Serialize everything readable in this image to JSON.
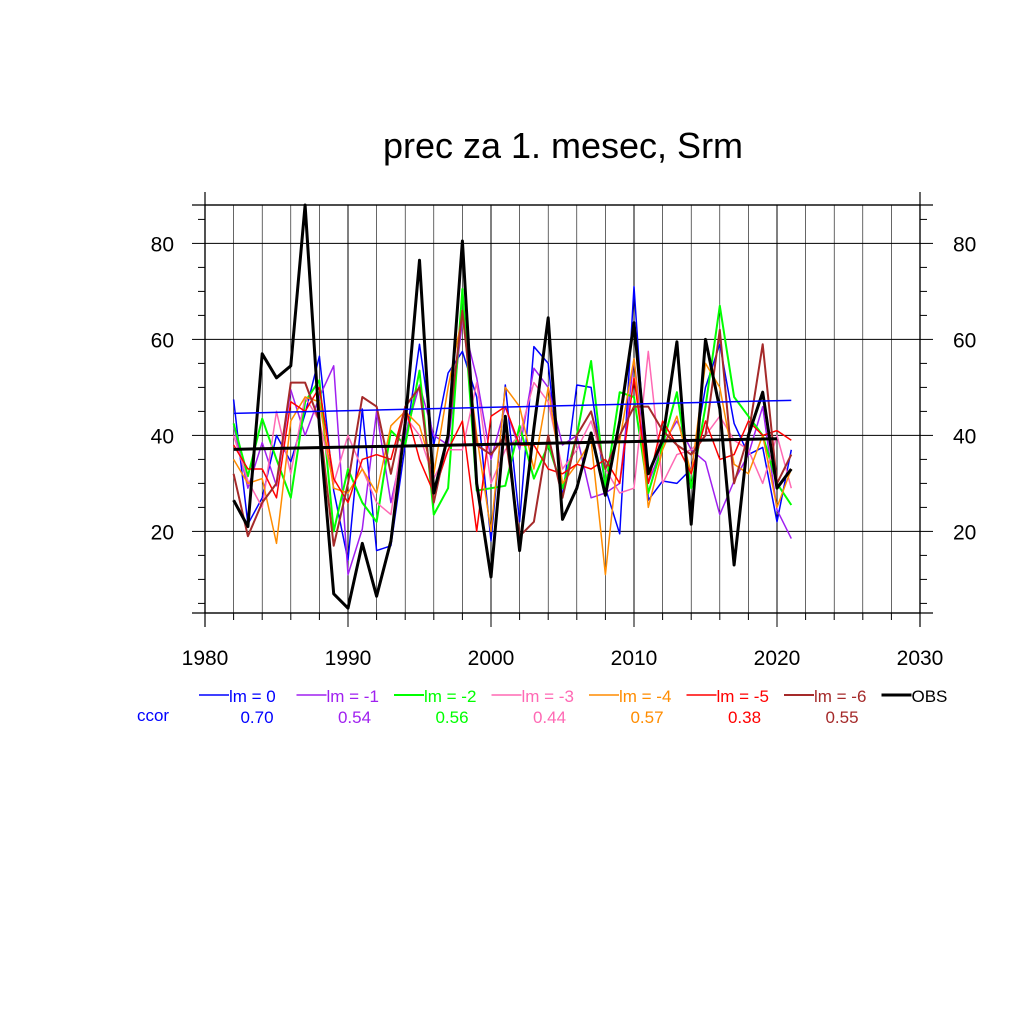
{
  "chart_data": {
    "type": "line",
    "title": "prec za 1. mesec, Srm",
    "xlabel": "",
    "ylabel": "",
    "xlim": [
      1980,
      2030
    ],
    "ylim": [
      3,
      88
    ],
    "x_ticks": [
      1980,
      1990,
      2000,
      2010,
      2020,
      2030
    ],
    "y_ticks": [
      20,
      40,
      60,
      80
    ],
    "grid": true,
    "legend_position": "bottom",
    "ccor_label": "ccor",
    "x": [
      1982,
      1983,
      1984,
      1985,
      1986,
      1987,
      1988,
      1989,
      1990,
      1991,
      1992,
      1993,
      1994,
      1995,
      1996,
      1997,
      1998,
      1999,
      2000,
      2001,
      2002,
      2003,
      2004,
      2005,
      2006,
      2007,
      2008,
      2009,
      2010,
      2011,
      2012,
      2013,
      2014,
      2015,
      2016,
      2017,
      2018,
      2019,
      2020,
      2021
    ],
    "series": [
      {
        "name": "lm = 0",
        "ccor": "0.70",
        "color": "#0000ff",
        "width": 1.5,
        "values": [
          47.5,
          21.5,
          27.0,
          40.0,
          34.5,
          44.5,
          56.5,
          28.5,
          14.0,
          45.5,
          16.0,
          17.0,
          38.0,
          59.0,
          38.0,
          53.0,
          57.5,
          48.0,
          18.0,
          50.5,
          22.0,
          58.5,
          55.0,
          27.0,
          50.5,
          50.0,
          29.0,
          19.5,
          71.0,
          26.5,
          30.5,
          30.0,
          33.0,
          50.0,
          59.0,
          42.5,
          36.0,
          37.5,
          22.0,
          37.0
        ]
      },
      {
        "name": "lm = -1",
        "ccor": "0.54",
        "color": "#a020f0",
        "width": 1.5,
        "values": [
          42.0,
          29.0,
          38.5,
          29.5,
          49.5,
          40.0,
          48.0,
          54.5,
          11.0,
          20.5,
          45.0,
          26.0,
          40.0,
          50.5,
          40.0,
          38.0,
          64.0,
          52.0,
          35.0,
          46.0,
          37.0,
          54.0,
          50.0,
          38.0,
          40.0,
          27.0,
          28.0,
          30.0,
          56.0,
          30.0,
          38.0,
          43.0,
          37.0,
          34.5,
          23.5,
          30.5,
          36.0,
          46.0,
          24.5,
          18.5
        ]
      },
      {
        "name": "lm = -2",
        "ccor": "0.56",
        "color": "#00ff00",
        "width": 2,
        "values": [
          42.5,
          31.5,
          43.5,
          35.0,
          27.0,
          47.0,
          51.5,
          20.0,
          33.0,
          26.0,
          22.0,
          41.0,
          38.0,
          53.5,
          23.5,
          29.0,
          70.5,
          28.5,
          29.0,
          29.5,
          42.0,
          31.0,
          38.0,
          29.0,
          40.0,
          55.5,
          29.0,
          49.0,
          48.0,
          28.0,
          38.0,
          49.0,
          29.0,
          46.0,
          67.0,
          48.0,
          44.0,
          40.0,
          30.0,
          25.5
        ]
      },
      {
        "name": "lm = -3",
        "ccor": "0.44",
        "color": "#ff69b4",
        "width": 1.5,
        "values": [
          40.0,
          30.5,
          25.0,
          45.0,
          32.0,
          48.0,
          43.0,
          30.0,
          40.0,
          33.0,
          26.0,
          23.5,
          44.0,
          40.0,
          31.0,
          37.0,
          37.0,
          51.0,
          30.0,
          37.0,
          40.0,
          51.0,
          47.0,
          33.0,
          37.0,
          43.0,
          33.0,
          28.0,
          29.0,
          57.5,
          30.0,
          36.0,
          37.0,
          40.0,
          44.0,
          39.0,
          37.0,
          30.0,
          40.0,
          29.0
        ]
      },
      {
        "name": "lm = -4",
        "ccor": "0.57",
        "color": "#ff8c00",
        "width": 1.5,
        "values": [
          35.0,
          30.0,
          31.0,
          17.5,
          43.0,
          48.0,
          47.0,
          29.0,
          28.0,
          33.0,
          28.0,
          42.0,
          45.0,
          42.0,
          32.0,
          50.0,
          65.0,
          40.0,
          20.0,
          50.0,
          46.0,
          33.0,
          50.0,
          30.0,
          34.0,
          39.0,
          11.0,
          39.0,
          56.0,
          25.0,
          37.0,
          44.0,
          32.0,
          55.0,
          50.0,
          34.0,
          32.0,
          40.0,
          25.0,
          33.0
        ]
      },
      {
        "name": "lm = -5",
        "ccor": "0.38",
        "color": "#ff0000",
        "width": 1.5,
        "values": [
          38.0,
          33.0,
          33.0,
          27.0,
          47.0,
          45.0,
          50.0,
          31.0,
          26.0,
          35.0,
          36.0,
          35.0,
          46.0,
          35.0,
          28.0,
          37.0,
          43.0,
          20.0,
          44.0,
          46.0,
          38.0,
          38.0,
          33.0,
          32.0,
          34.0,
          33.0,
          35.0,
          30.0,
          52.0,
          30.0,
          43.0,
          38.0,
          32.0,
          43.0,
          35.0,
          36.0,
          43.0,
          40.0,
          41.0,
          39.0
        ]
      },
      {
        "name": "lm = -6",
        "ccor": "0.55",
        "color": "#a52a2a",
        "width": 2,
        "values": [
          32.0,
          19.0,
          26.0,
          30.0,
          51.0,
          51.0,
          43.0,
          17.0,
          30.0,
          48.0,
          46.0,
          32.0,
          46.0,
          50.0,
          26.0,
          40.0,
          66.0,
          38.0,
          36.0,
          40.0,
          19.0,
          22.0,
          40.0,
          27.0,
          40.0,
          45.0,
          33.0,
          40.0,
          46.0,
          46.0,
          41.0,
          38.0,
          36.0,
          40.0,
          62.0,
          30.0,
          40.0,
          59.0,
          30.0,
          36.0
        ]
      },
      {
        "name": "OBS",
        "ccor": "",
        "color": "#000000",
        "width": 3,
        "values": [
          26.5,
          21.0,
          57.0,
          52.0,
          54.5,
          88.0,
          42.0,
          7.0,
          4.0,
          17.5,
          6.5,
          18.0,
          42.5,
          76.5,
          28.0,
          40.0,
          80.5,
          30.0,
          10.5,
          44.0,
          16.0,
          41.5,
          64.5,
          22.5,
          29.0,
          40.5,
          27.5,
          43.0,
          63.5,
          32.0,
          39.0,
          59.5,
          21.5,
          60.0,
          45.5,
          13.0,
          40.0,
          49.0,
          29.0,
          33.0
        ]
      }
    ],
    "trend_lines": [
      {
        "name": "lm = 0 trend",
        "color": "#0000ff",
        "width": 1.5,
        "x": [
          1982,
          2021
        ],
        "y": [
          44.6,
          47.3
        ]
      },
      {
        "name": "OBS trend",
        "color": "#000000",
        "width": 3,
        "x": [
          1982,
          2020
        ],
        "y": [
          37.1,
          39.3
        ]
      }
    ]
  }
}
